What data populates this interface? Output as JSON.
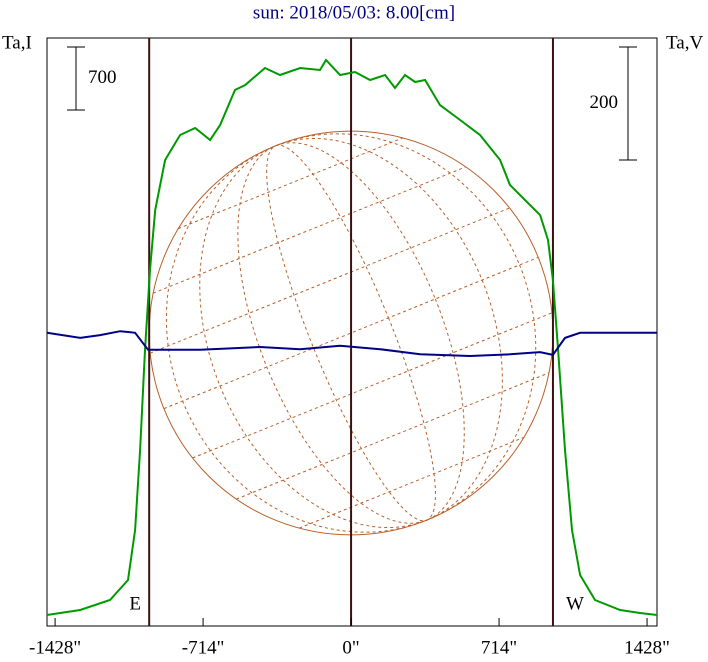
{
  "chart_data": {
    "type": "line",
    "title": "sun: 2018/05/03: 8.00[cm]",
    "ylabel": "Ta,I",
    "y2label": "Ta,V",
    "scale_bars": {
      "y": 700,
      "y2": 200
    },
    "xlim": [
      -1467,
      1476
    ],
    "ylim": [
      0,
      6533
    ],
    "y2lim": [
      0,
      1041
    ],
    "xticks": [
      {
        "value": -1428,
        "label": "-1428\""
      },
      {
        "value": -714,
        "label": "-714\""
      },
      {
        "value": 0,
        "label": "0\""
      },
      {
        "value": 714,
        "label": "714\""
      },
      {
        "value": 1428,
        "label": "1428\""
      }
    ],
    "vlines": [
      {
        "value": -974,
        "label": "E"
      },
      {
        "value": 0
      },
      {
        "value": 974,
        "label": "W"
      }
    ],
    "series": [
      {
        "color": "#009a00",
        "axis": "y",
        "x": [
          -1467,
          -1307,
          -1163,
          -1076,
          -1042,
          -1018,
          -994,
          -970,
          -945,
          -897,
          -825,
          -752,
          -680,
          -632,
          -560,
          -511,
          -415,
          -343,
          -246,
          -150,
          -121,
          -53,
          19,
          92,
          164,
          212,
          260,
          309,
          357,
          429,
          526,
          622,
          719,
          767,
          839,
          912,
          950,
          974,
          999,
          1032,
          1066,
          1105,
          1177,
          1298,
          1394,
          1476
        ],
        "values": [
          122,
          178,
          289,
          511,
          1067,
          1956,
          3067,
          3956,
          4622,
          5178,
          5455,
          5533,
          5400,
          5566,
          5955,
          6011,
          6200,
          6122,
          6200,
          6178,
          6289,
          6122,
          6155,
          6066,
          6122,
          5977,
          6122,
          6044,
          6066,
          5788,
          5622,
          5455,
          5178,
          4900,
          4733,
          4566,
          4289,
          3844,
          3067,
          1956,
          1067,
          567,
          289,
          178,
          144,
          122
        ]
      },
      {
        "color": "#000088",
        "axis": "y2",
        "x": [
          -1467,
          -1307,
          -1211,
          -1114,
          -1042,
          -979,
          -921,
          -728,
          -439,
          -246,
          -53,
          140,
          333,
          574,
          767,
          912,
          974,
          1032,
          1105,
          1298,
          1476
        ],
        "values": [
          519,
          510,
          515,
          522,
          519,
          489,
          489,
          489,
          494,
          490,
          496,
          490,
          481,
          478,
          481,
          485,
          480,
          510,
          519,
          519,
          519
        ]
      }
    ]
  }
}
